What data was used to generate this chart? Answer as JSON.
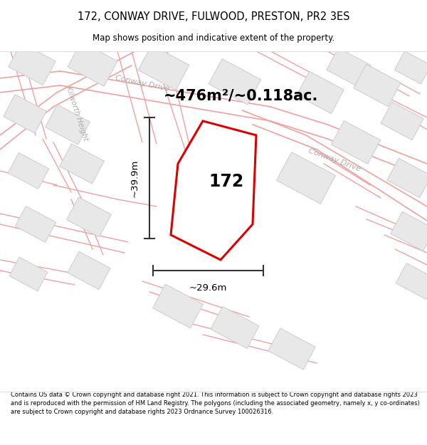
{
  "title": "172, CONWAY DRIVE, FULWOOD, PRESTON, PR2 3ES",
  "subtitle": "Map shows position and indicative extent of the property.",
  "area_text": "~476m²/~0.118ac.",
  "width_label": "~29.6m",
  "height_label": "~39.9m",
  "property_number": "172",
  "footer": "Contains OS data © Crown copyright and database right 2021. This information is subject to Crown copyright and database rights 2023 and is reproduced with the permission of HM Land Registry. The polygons (including the associated geometry, namely x, y co-ordinates) are subject to Crown copyright and database rights 2023 Ordnance Survey 100026316.",
  "bg_color": "#ffffff",
  "map_bg": "#f9f7f7",
  "road_color": "#f0a0a0",
  "road_fill": "#fce8e8",
  "building_fill": "#e8e8e8",
  "building_edge": "#cccccc",
  "plot_color": "#dd0000",
  "plot_fill": "#ffffff",
  "dim_line_color": "#333333",
  "text_color": "#000000",
  "road_label_color": "#aaaaaa",
  "footer_color": "#000000"
}
